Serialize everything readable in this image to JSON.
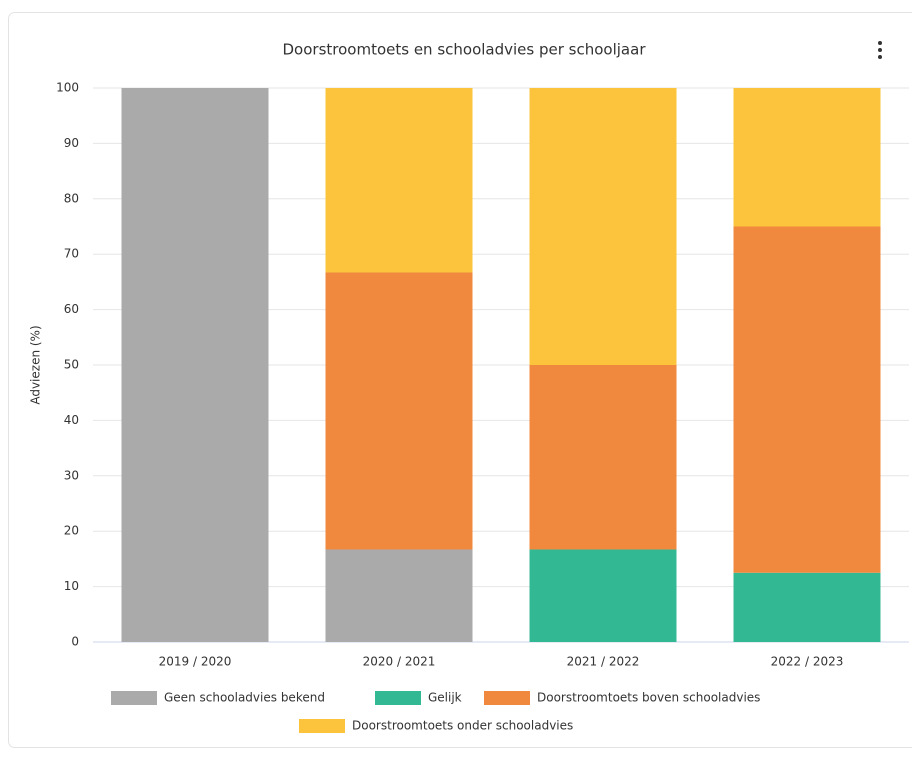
{
  "chart_data": {
    "type": "stacked_bar",
    "title": "Doorstroomtoets en schooladvies per schooljaar",
    "y_label": "Adviezen (%)",
    "categories": [
      "2019 / 2020",
      "2020 / 2021",
      "2021 / 2022",
      "2022 / 2023"
    ],
    "series": [
      {
        "name": "Geen schooladvies bekend",
        "color": "#aaaaaa",
        "values": [
          100,
          16.7,
          0,
          0
        ]
      },
      {
        "name": "Gelijk",
        "color": "#33b894",
        "values": [
          0,
          0,
          16.7,
          12.5
        ]
      },
      {
        "name": "Doorstroomtoets boven schooladvies",
        "color": "#f0883e",
        "values": [
          0,
          50,
          33.3,
          62.5
        ]
      },
      {
        "name": "Doorstroomtoets onder schooladvies",
        "color": "#fbc43c",
        "values": [
          0,
          33.3,
          50,
          25
        ]
      }
    ],
    "ylim": [
      0,
      100
    ],
    "yticks": [
      0,
      10,
      20,
      30,
      40,
      50,
      60,
      70,
      80,
      90,
      100
    ],
    "grid": true,
    "legend": "bottom"
  }
}
